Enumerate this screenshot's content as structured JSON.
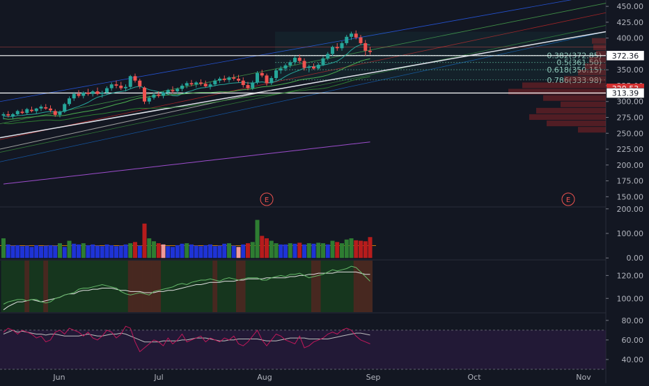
{
  "colors": {
    "background": "#131722",
    "axis_text": "#b2b5be",
    "up_candle": "#26a69a",
    "down_candle": "#ef5350",
    "grid": "#1e222d",
    "fib_text": "#8ec7b8",
    "price_box_white": "#ffffff",
    "price_box_red": "#d32f2f"
  },
  "chart_data": [
    {
      "type": "candlestick",
      "pane": "price",
      "x_ticks": [
        "Jun",
        "Jul",
        "Aug",
        "Sep",
        "Oct",
        "Nov"
      ],
      "y_ticks": [
        "150.00",
        "175.00",
        "200.00",
        "225.00",
        "250.00",
        "275.00",
        "300.00",
        "325.00",
        "350.00",
        "375.00",
        "400.00",
        "425.00",
        "450.00"
      ],
      "ylim": [
        135,
        460
      ],
      "earnings_markers": [
        "E",
        "E"
      ],
      "fib_levels": [
        {
          "label": "0.382(372.85)",
          "value": 372.85
        },
        {
          "label": "0.5(361.50)",
          "value": 361.5
        },
        {
          "label": "0.618(350.15)",
          "value": 350.15
        },
        {
          "label": "0.786(333.98)",
          "value": 333.98
        }
      ],
      "price_labels": [
        {
          "text": "372.36",
          "value": 372.36,
          "style": "white"
        },
        {
          "text": "320.53",
          "value": 320.53,
          "style": "red"
        },
        {
          "text": "313.39",
          "value": 313.39,
          "style": "white"
        }
      ],
      "horizontal_lines": [
        372.36,
        313.39
      ],
      "candles_ohlc": [
        [
          278,
          283,
          272,
          280
        ],
        [
          280,
          285,
          275,
          278
        ],
        [
          277,
          282,
          273,
          280
        ],
        [
          280,
          287,
          278,
          285
        ],
        [
          284,
          288,
          280,
          282
        ],
        [
          282,
          290,
          279,
          288
        ],
        [
          287,
          292,
          283,
          285
        ],
        [
          285,
          290,
          281,
          289
        ],
        [
          289,
          295,
          285,
          292
        ],
        [
          291,
          296,
          287,
          289
        ],
        [
          289,
          294,
          283,
          286
        ],
        [
          285,
          288,
          276,
          279
        ],
        [
          279,
          286,
          275,
          284
        ],
        [
          284,
          298,
          282,
          296
        ],
        [
          296,
          308,
          293,
          305
        ],
        [
          305,
          315,
          301,
          312
        ],
        [
          312,
          318,
          306,
          309
        ],
        [
          309,
          316,
          305,
          314
        ],
        [
          314,
          320,
          309,
          312
        ],
        [
          312,
          318,
          308,
          316
        ],
        [
          316,
          322,
          310,
          312
        ],
        [
          312,
          317,
          306,
          314
        ],
        [
          314,
          324,
          311,
          321
        ],
        [
          321,
          330,
          317,
          327
        ],
        [
          327,
          333,
          321,
          325
        ],
        [
          325,
          331,
          318,
          321
        ],
        [
          321,
          327,
          316,
          323
        ],
        [
          323,
          342,
          321,
          340
        ],
        [
          340,
          344,
          330,
          333
        ],
        [
          333,
          336,
          320,
          324
        ],
        [
          322,
          324,
          296,
          300
        ],
        [
          300,
          309,
          296,
          306
        ],
        [
          306,
          314,
          303,
          311
        ],
        [
          311,
          316,
          306,
          309
        ],
        [
          309,
          316,
          305,
          314
        ],
        [
          314,
          320,
          310,
          318
        ],
        [
          318,
          324,
          313,
          316
        ],
        [
          316,
          322,
          312,
          320
        ],
        [
          320,
          328,
          316,
          325
        ],
        [
          325,
          332,
          321,
          329
        ],
        [
          329,
          334,
          324,
          327
        ],
        [
          327,
          332,
          322,
          330
        ],
        [
          330,
          335,
          325,
          328
        ],
        [
          328,
          333,
          322,
          324
        ],
        [
          324,
          330,
          319,
          327
        ],
        [
          327,
          336,
          324,
          333
        ],
        [
          333,
          339,
          329,
          336
        ],
        [
          336,
          341,
          331,
          334
        ],
        [
          334,
          340,
          330,
          338
        ],
        [
          338,
          343,
          333,
          336
        ],
        [
          336,
          342,
          330,
          333
        ],
        [
          333,
          338,
          322,
          326
        ],
        [
          326,
          331,
          318,
          321
        ],
        [
          321,
          333,
          318,
          330
        ],
        [
          330,
          348,
          327,
          345
        ],
        [
          345,
          350,
          338,
          341
        ],
        [
          341,
          344,
          325,
          329
        ],
        [
          329,
          340,
          326,
          337
        ],
        [
          337,
          352,
          334,
          349
        ],
        [
          349,
          356,
          344,
          352
        ],
        [
          352,
          360,
          348,
          357
        ],
        [
          357,
          365,
          353,
          362
        ],
        [
          362,
          372,
          358,
          369
        ],
        [
          369,
          374,
          360,
          364
        ],
        [
          364,
          368,
          349,
          353
        ],
        [
          353,
          358,
          346,
          355
        ],
        [
          355,
          360,
          350,
          352
        ],
        [
          352,
          361,
          350,
          358
        ],
        [
          358,
          371,
          356,
          368
        ],
        [
          368,
          378,
          365,
          375
        ],
        [
          375,
          388,
          372,
          386
        ],
        [
          386,
          392,
          380,
          384
        ],
        [
          384,
          395,
          380,
          392
        ],
        [
          392,
          405,
          389,
          402
        ],
        [
          402,
          410,
          397,
          407
        ],
        [
          407,
          412,
          398,
          401
        ],
        [
          401,
          405,
          389,
          392
        ],
        [
          392,
          397,
          372,
          380
        ],
        [
          380,
          386,
          374,
          378
        ]
      ]
    },
    {
      "type": "bar",
      "pane": "volume",
      "y_ticks": [
        "0.00",
        "100.00",
        "200.00"
      ],
      "ylim": [
        -5,
        205
      ],
      "values": [
        80,
        55,
        50,
        52,
        48,
        50,
        45,
        52,
        48,
        50,
        52,
        50,
        60,
        45,
        70,
        58,
        55,
        60,
        52,
        55,
        50,
        48,
        55,
        52,
        48,
        50,
        55,
        60,
        65,
        50,
        140,
        80,
        68,
        60,
        55,
        48,
        45,
        52,
        58,
        60,
        55,
        50,
        48,
        52,
        55,
        48,
        50,
        58,
        60,
        50,
        45,
        55,
        60,
        65,
        155,
        90,
        80,
        70,
        60,
        55,
        55,
        60,
        58,
        62,
        55,
        60,
        58,
        62,
        60,
        55,
        70,
        65,
        60,
        75,
        80,
        72,
        70,
        68,
        85
      ]
    },
    {
      "type": "line",
      "pane": "oscillator",
      "y_ticks": [
        "100.00",
        "120.00"
      ],
      "ylim": [
        88,
        133
      ],
      "series": [
        {
          "name": "",
          "values": [
            90,
            93,
            95,
            97,
            97,
            98,
            99,
            98,
            97,
            98,
            99,
            100,
            101,
            103,
            104,
            104,
            106,
            107,
            107,
            108,
            108,
            109,
            109,
            109,
            108,
            107,
            107,
            106,
            106,
            106,
            105,
            105,
            105,
            106,
            106,
            107,
            107,
            108,
            109,
            110,
            111,
            112,
            112,
            113,
            114,
            114,
            114,
            115,
            115,
            115,
            116,
            116,
            117,
            117,
            117,
            117,
            118,
            118,
            118,
            118,
            118,
            119,
            119,
            120,
            120,
            121,
            121,
            122,
            122,
            122,
            122,
            123,
            123,
            123,
            123,
            123,
            122,
            121,
            121
          ]
        },
        {
          "name": "",
          "values": [
            95,
            97,
            98,
            99,
            99,
            98,
            99,
            99,
            97,
            96,
            97,
            100,
            101,
            103,
            104,
            105,
            108,
            109,
            109,
            110,
            111,
            112,
            111,
            110,
            109,
            106,
            104,
            103,
            104,
            105,
            104,
            103,
            106,
            107,
            108,
            109,
            110,
            112,
            113,
            112,
            114,
            115,
            116,
            116,
            117,
            116,
            115,
            117,
            118,
            117,
            116,
            117,
            118,
            118,
            118,
            116,
            116,
            118,
            119,
            120,
            119,
            121,
            121,
            122,
            120,
            118,
            119,
            120,
            121,
            123,
            125,
            124,
            125,
            126,
            128,
            127,
            123,
            119,
            115
          ]
        }
      ]
    },
    {
      "type": "line",
      "pane": "rsi",
      "y_ticks": [
        "40.00",
        "60.00",
        "80.00"
      ],
      "ylim": [
        30,
        87
      ],
      "series": [
        {
          "name": "",
          "values": [
            66,
            68,
            70,
            68,
            69,
            68,
            67,
            66,
            66,
            65,
            66,
            66,
            65,
            64,
            64,
            64,
            64,
            65,
            66,
            65,
            64,
            64,
            65,
            66,
            66,
            67,
            66,
            64,
            62,
            60,
            58,
            58,
            58,
            58,
            59,
            59,
            59,
            59,
            60,
            60,
            61,
            62,
            62,
            62,
            61,
            60,
            59,
            59,
            60,
            60,
            61,
            61,
            61,
            61,
            61,
            60,
            59,
            59,
            59,
            60,
            61,
            62,
            62,
            62,
            62,
            61,
            61,
            61,
            61,
            61,
            62,
            63,
            64,
            65,
            66,
            67,
            67,
            66,
            65
          ]
        },
        {
          "name": "",
          "values": [
            68,
            72,
            70,
            66,
            70,
            68,
            66,
            62,
            64,
            58,
            60,
            68,
            70,
            66,
            72,
            70,
            68,
            64,
            68,
            62,
            60,
            64,
            70,
            68,
            62,
            66,
            74,
            72,
            58,
            48,
            52,
            56,
            60,
            58,
            54,
            62,
            56,
            60,
            66,
            58,
            60,
            62,
            64,
            58,
            62,
            60,
            58,
            62,
            60,
            64,
            56,
            54,
            58,
            64,
            70,
            60,
            54,
            60,
            66,
            64,
            60,
            58,
            56,
            64,
            52,
            54,
            58,
            60,
            62,
            66,
            68,
            66,
            70,
            72,
            70,
            64,
            60,
            58,
            56
          ]
        }
      ]
    }
  ]
}
